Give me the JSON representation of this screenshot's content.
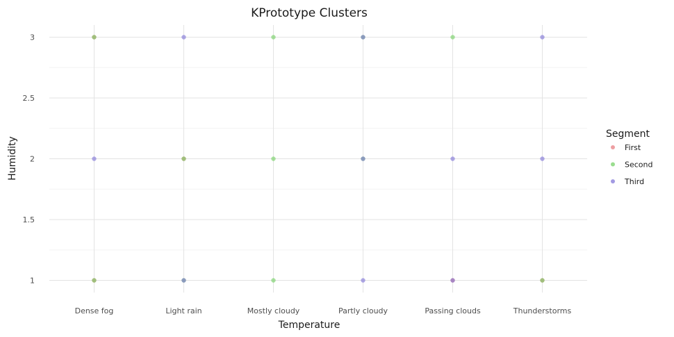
{
  "chart_data": {
    "type": "scatter",
    "title": "KPrototype Clusters",
    "xlabel": "Temperature",
    "ylabel": "Humidity",
    "categories": [
      "Dense fog",
      "Light rain",
      "Mostly cloudy",
      "Partly cloudy",
      "Passing clouds",
      "Thunderstorms"
    ],
    "yticks": [
      "1",
      "1.5",
      "2",
      "2.5",
      "3"
    ],
    "ylim": [
      0.9,
      3.1
    ],
    "grid": true,
    "legend": {
      "title": "Segment",
      "position": "right"
    },
    "series": [
      {
        "name": "First",
        "color": "#e5767a",
        "points": [
          {
            "x": "Dense fog",
            "y": 3
          },
          {
            "x": "Dense fog",
            "y": 1
          },
          {
            "x": "Light rain",
            "y": 2
          },
          {
            "x": "Passing clouds",
            "y": 1
          },
          {
            "x": "Thunderstorms",
            "y": 1
          }
        ]
      },
      {
        "name": "Second",
        "color": "#6fcf5f",
        "points": [
          {
            "x": "Dense fog",
            "y": 3
          },
          {
            "x": "Dense fog",
            "y": 1
          },
          {
            "x": "Light rain",
            "y": 2
          },
          {
            "x": "Light rain",
            "y": 1
          },
          {
            "x": "Mostly cloudy",
            "y": 3
          },
          {
            "x": "Mostly cloudy",
            "y": 2
          },
          {
            "x": "Mostly cloudy",
            "y": 1
          },
          {
            "x": "Partly cloudy",
            "y": 3
          },
          {
            "x": "Partly cloudy",
            "y": 2
          },
          {
            "x": "Passing clouds",
            "y": 3
          },
          {
            "x": "Thunderstorms",
            "y": 1
          }
        ]
      },
      {
        "name": "Third",
        "color": "#7b6fd6",
        "points": [
          {
            "x": "Dense fog",
            "y": 2
          },
          {
            "x": "Light rain",
            "y": 3
          },
          {
            "x": "Light rain",
            "y": 1
          },
          {
            "x": "Partly cloudy",
            "y": 3
          },
          {
            "x": "Partly cloudy",
            "y": 2
          },
          {
            "x": "Partly cloudy",
            "y": 1
          },
          {
            "x": "Passing clouds",
            "y": 2
          },
          {
            "x": "Passing clouds",
            "y": 1
          },
          {
            "x": "Thunderstorms",
            "y": 3
          },
          {
            "x": "Thunderstorms",
            "y": 2
          }
        ]
      }
    ]
  }
}
